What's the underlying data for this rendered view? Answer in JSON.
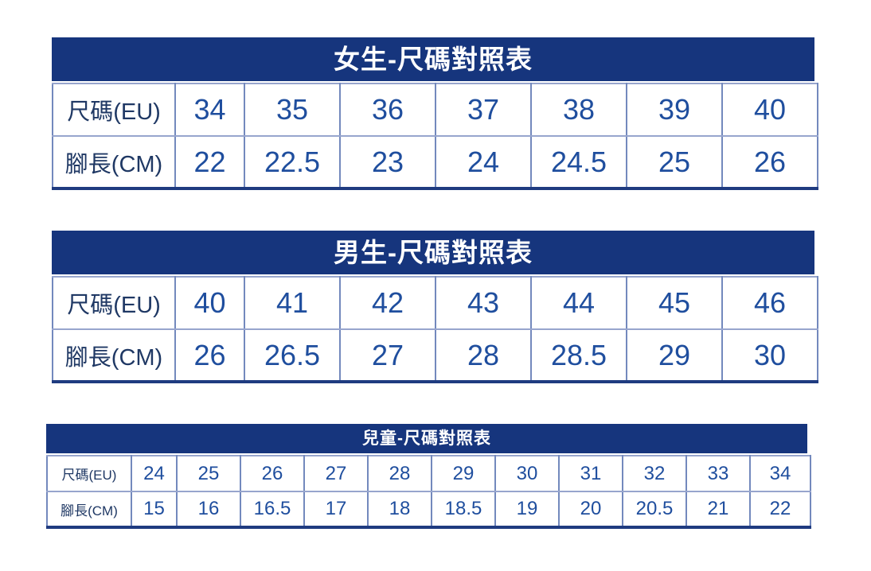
{
  "colors": {
    "header_bg": "#16357D",
    "header_text": "#FFFFFF",
    "value_text": "#1F4E9E",
    "label_text": "#1F3864",
    "grid_line": "#7389BD",
    "outer_line": "#1F3B80",
    "page_bg": "#FFFFFF"
  },
  "tables": [
    {
      "id": "women",
      "title": "女生-尺碼對照表",
      "row_labels": [
        "尺碼(EU)",
        "腳長(CM)"
      ],
      "eu_sizes": [
        "34",
        "35",
        "36",
        "37",
        "38",
        "39",
        "40"
      ],
      "foot_lengths_cm": [
        "22",
        "22.5",
        "23",
        "24",
        "24.5",
        "25",
        "26"
      ]
    },
    {
      "id": "men",
      "title": "男生-尺碼對照表",
      "row_labels": [
        "尺碼(EU)",
        "腳長(CM)"
      ],
      "eu_sizes": [
        "40",
        "41",
        "42",
        "43",
        "44",
        "45",
        "46"
      ],
      "foot_lengths_cm": [
        "26",
        "26.5",
        "27",
        "28",
        "28.5",
        "29",
        "30"
      ]
    },
    {
      "id": "children",
      "title": "兒童-尺碼對照表",
      "row_labels": [
        "尺碼(EU)",
        "腳長(CM)"
      ],
      "eu_sizes": [
        "24",
        "25",
        "26",
        "27",
        "28",
        "29",
        "30",
        "31",
        "32",
        "33",
        "34"
      ],
      "foot_lengths_cm": [
        "15",
        "16",
        "16.5",
        "17",
        "18",
        "18.5",
        "19",
        "20",
        "20.5",
        "21",
        "22"
      ]
    }
  ],
  "chart_data": [
    {
      "type": "table",
      "title": "女生-尺碼對照表",
      "rows": [
        [
          "尺碼(EU)",
          34,
          35,
          36,
          37,
          38,
          39,
          40
        ],
        [
          "腳長(CM)",
          22,
          22.5,
          23,
          24,
          24.5,
          25,
          26
        ]
      ]
    },
    {
      "type": "table",
      "title": "男生-尺碼對照表",
      "rows": [
        [
          "尺碼(EU)",
          40,
          41,
          42,
          43,
          44,
          45,
          46
        ],
        [
          "腳長(CM)",
          26,
          26.5,
          27,
          28,
          28.5,
          29,
          30
        ]
      ]
    },
    {
      "type": "table",
      "title": "兒童-尺碼對照表",
      "rows": [
        [
          "尺碼(EU)",
          24,
          25,
          26,
          27,
          28,
          29,
          30,
          31,
          32,
          33,
          34
        ],
        [
          "腳長(CM)",
          15,
          16,
          16.5,
          17,
          18,
          18.5,
          19,
          20,
          20.5,
          21,
          22
        ]
      ]
    }
  ]
}
